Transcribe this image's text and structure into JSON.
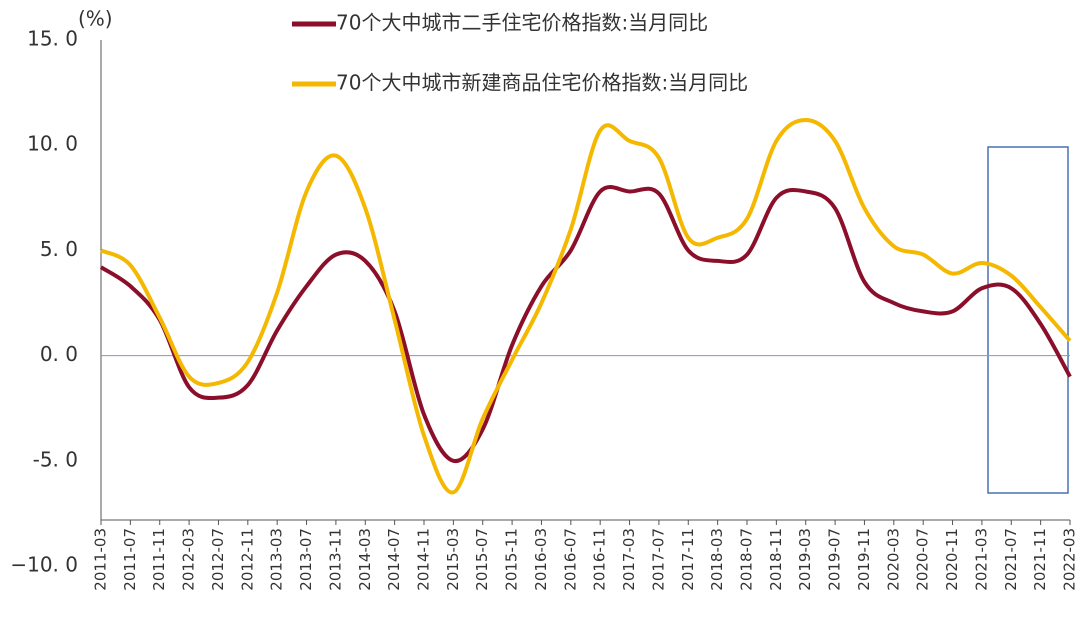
{
  "chart_data": {
    "type": "line",
    "y_unit": "(%)",
    "categories": [
      "2011-03",
      "2011-07",
      "2011-11",
      "2012-03",
      "2012-07",
      "2012-11",
      "2013-03",
      "2013-07",
      "2013-11",
      "2014-03",
      "2014-07",
      "2014-11",
      "2015-03",
      "2015-07",
      "2015-11",
      "2016-03",
      "2016-07",
      "2016-11",
      "2017-03",
      "2017-07",
      "2017-11",
      "2018-03",
      "2018-07",
      "2018-11",
      "2019-03",
      "2019-07",
      "2019-11",
      "2020-03",
      "2020-07",
      "2020-11",
      "2021-03",
      "2021-07",
      "2021-11",
      "2022-03"
    ],
    "series": [
      {
        "name": "70个大中城市二手住宅价格指数:当月同比",
        "color": "#8b0f2a",
        "values": [
          4.2,
          3.3,
          1.7,
          -1.5,
          -2.0,
          -1.4,
          1.2,
          3.3,
          4.8,
          4.5,
          2.1,
          -2.8,
          -5.0,
          -3.5,
          0.5,
          3.3,
          5.0,
          7.8,
          7.8,
          7.7,
          5.0,
          4.5,
          4.8,
          7.5,
          7.8,
          7.0,
          3.5,
          2.5,
          2.1,
          2.1,
          3.2,
          3.2,
          1.5,
          -1.0
        ]
      },
      {
        "name": "70个大中城市新建商品住宅价格指数:当月同比",
        "color": "#f5b800",
        "values": [
          5.0,
          4.3,
          1.8,
          -1.0,
          -1.3,
          -0.3,
          3.0,
          7.8,
          9.5,
          7.0,
          1.7,
          -3.8,
          -6.5,
          -3.0,
          -0.2,
          2.5,
          6.0,
          10.7,
          10.2,
          9.4,
          5.6,
          5.6,
          6.5,
          10.2,
          11.2,
          10.2,
          7.0,
          5.2,
          4.8,
          3.9,
          4.4,
          3.8,
          2.3,
          0.7
        ]
      }
    ],
    "ylim": [
      -10,
      15
    ],
    "yticks": [
      {
        "value": -10,
        "label": "−10. 0"
      },
      {
        "value": -5,
        "label": "-5. 0"
      },
      {
        "value": 0,
        "label": "0. 0"
      },
      {
        "value": 5,
        "label": "5. 0"
      },
      {
        "value": 10,
        "label": "10. 0"
      },
      {
        "value": 15,
        "label": "15. 0"
      }
    ]
  }
}
